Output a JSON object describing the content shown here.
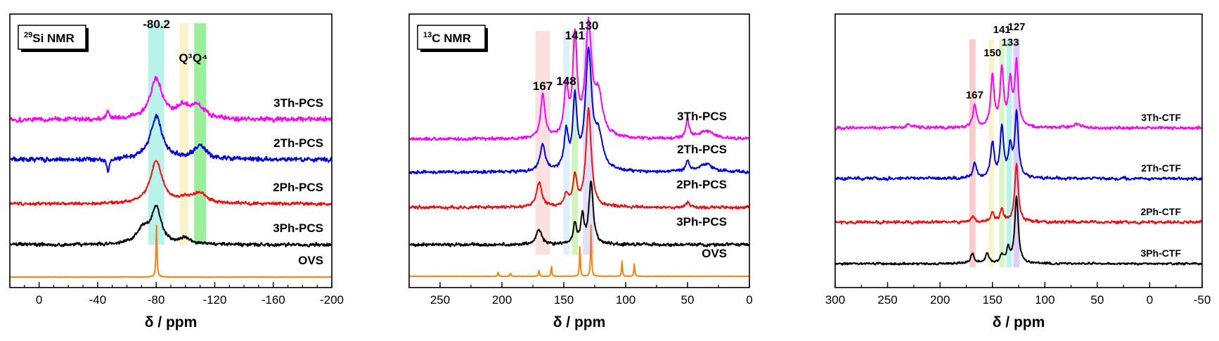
{
  "chart_data": [
    {
      "type": "line",
      "title": "29Si NMR",
      "title_parts": {
        "sup": "29",
        "main": "Si NMR"
      },
      "xlabel": "δ / ppm",
      "xlim": [
        20,
        -200
      ],
      "reversed_x": true,
      "ticks": [
        0,
        -40,
        -80,
        -120,
        -160,
        -200
      ],
      "tick_labels": [
        "0",
        "-40",
        "-80",
        "-120",
        "-160",
        "-200"
      ],
      "peak_labels": [
        {
          "text": "-80.2",
          "x": -80.2
        },
        {
          "text": "Q³",
          "x": -100
        },
        {
          "text": "Q⁴",
          "x": -110
        }
      ],
      "bands": [
        {
          "center": -80,
          "width": 11,
          "color": "#7fe7d6"
        },
        {
          "center": -99,
          "width": 6,
          "color": "#f2e9a0"
        },
        {
          "center": -110,
          "width": 8,
          "color": "#4be04b"
        }
      ],
      "series": [
        {
          "name": "3Th-PCS",
          "color": "#ff00ff",
          "peaks": [
            {
              "x": -80,
              "h": 0.95,
              "w": 5
            },
            {
              "x": -98,
              "h": 0.25,
              "w": 5
            },
            {
              "x": -108,
              "h": 0.3,
              "w": 6
            },
            {
              "x": -47,
              "h": 0.2,
              "w": 1
            }
          ]
        },
        {
          "name": "2Th-PCS",
          "color": "#0000dd",
          "peaks": [
            {
              "x": -80,
              "h": 1.0,
              "w": 5
            },
            {
              "x": -110,
              "h": 0.32,
              "w": 5
            },
            {
              "x": -47,
              "h": -0.3,
              "w": 1
            }
          ]
        },
        {
          "name": "2Ph-PCS",
          "color": "#ee1111",
          "peaks": [
            {
              "x": -80,
              "h": 1.0,
              "w": 5
            },
            {
              "x": -100,
              "h": 0.1,
              "w": 5
            },
            {
              "x": -110,
              "h": 0.22,
              "w": 6
            }
          ]
        },
        {
          "name": "3Ph-PCS",
          "color": "#000000",
          "peaks": [
            {
              "x": -71,
              "h": 0.35,
              "w": 5
            },
            {
              "x": -80,
              "h": 0.85,
              "w": 4
            },
            {
              "x": -100,
              "h": 0.15,
              "w": 4
            }
          ]
        },
        {
          "name": "OVS",
          "color": "#ff7f0e",
          "peaks": [
            {
              "x": -80.2,
              "h": 1.0,
              "w": 0.4
            }
          ]
        }
      ]
    },
    {
      "type": "line",
      "title": "13C NMR",
      "title_parts": {
        "sup": "13",
        "main": "C NMR"
      },
      "xlabel": "δ / ppm",
      "xlim": [
        275,
        0
      ],
      "reversed_x": true,
      "ticks": [
        250,
        200,
        150,
        100,
        50,
        0
      ],
      "tick_labels": [
        "250",
        "200",
        "150",
        "100",
        "50",
        "0"
      ],
      "peak_labels": [
        {
          "text": "167",
          "x": 167
        },
        {
          "text": "148",
          "x": 148
        },
        {
          "text": "141",
          "x": 141
        },
        {
          "text": "130",
          "x": 130
        }
      ],
      "bands": [
        {
          "center": 167,
          "width": 12,
          "color": "#f7c7c7"
        },
        {
          "center": 148,
          "width": 5,
          "color": "#bfe3f7"
        },
        {
          "center": 141,
          "width": 5,
          "color": "#a8ee80"
        },
        {
          "center": 130,
          "width": 9,
          "color": "#c7c7f2"
        }
      ],
      "series": [
        {
          "name": "3Th-PCS",
          "color": "#ff00ff",
          "peaks": [
            {
              "x": 167,
              "h": 0.45,
              "w": 2
            },
            {
              "x": 148,
              "h": 0.5,
              "w": 2
            },
            {
              "x": 141,
              "h": 1.0,
              "w": 2
            },
            {
              "x": 130,
              "h": 1.1,
              "w": 3
            },
            {
              "x": 122,
              "h": 0.4,
              "w": 4
            },
            {
              "x": 50,
              "h": 0.2,
              "w": 1.5
            },
            {
              "x": 35,
              "h": 0.08,
              "w": 8
            }
          ]
        },
        {
          "name": "2Th-PCS",
          "color": "#0000dd",
          "peaks": [
            {
              "x": 167,
              "h": 0.25,
              "w": 2.5
            },
            {
              "x": 148,
              "h": 0.35,
              "w": 2
            },
            {
              "x": 141,
              "h": 0.65,
              "w": 2
            },
            {
              "x": 130,
              "h": 1.1,
              "w": 3
            },
            {
              "x": 122,
              "h": 0.3,
              "w": 4
            },
            {
              "x": 50,
              "h": 0.1,
              "w": 2
            },
            {
              "x": 35,
              "h": 0.08,
              "w": 6
            }
          ]
        },
        {
          "name": "2Ph-PCS",
          "color": "#ee1111",
          "peaks": [
            {
              "x": 170,
              "h": 0.25,
              "w": 2.5
            },
            {
              "x": 148,
              "h": 0.12,
              "w": 2
            },
            {
              "x": 141,
              "h": 0.3,
              "w": 2
            },
            {
              "x": 130,
              "h": 1.0,
              "w": 2.5
            },
            {
              "x": 50,
              "h": 0.05,
              "w": 2
            }
          ]
        },
        {
          "name": "3Ph-PCS",
          "color": "#000000",
          "peaks": [
            {
              "x": 170,
              "h": 0.22,
              "w": 2.5
            },
            {
              "x": 141,
              "h": 0.3,
              "w": 1.5
            },
            {
              "x": 135,
              "h": 0.4,
              "w": 1.5
            },
            {
              "x": 128,
              "h": 0.9,
              "w": 2
            }
          ]
        },
        {
          "name": "OVS",
          "color": "#ff7f0e",
          "peaks": [
            {
              "x": 203,
              "h": 0.08,
              "w": 0.4
            },
            {
              "x": 193,
              "h": 0.06,
              "w": 0.4
            },
            {
              "x": 170,
              "h": 0.12,
              "w": 0.4
            },
            {
              "x": 160,
              "h": 0.2,
              "w": 0.4
            },
            {
              "x": 137,
              "h": 0.6,
              "w": 0.4
            },
            {
              "x": 128,
              "h": 1.0,
              "w": 0.4
            },
            {
              "x": 103,
              "h": 0.3,
              "w": 0.4
            },
            {
              "x": 93,
              "h": 0.25,
              "w": 0.4
            }
          ]
        }
      ]
    },
    {
      "type": "line",
      "title": "",
      "xlabel": "δ / ppm",
      "xlim": [
        300,
        -50
      ],
      "reversed_x": true,
      "ticks": [
        300,
        250,
        200,
        150,
        100,
        50,
        0,
        -50
      ],
      "tick_labels": [
        "300",
        "250",
        "200",
        "150",
        "100",
        "50",
        "0",
        "-50"
      ],
      "peak_labels": [
        {
          "text": "167",
          "x": 167
        },
        {
          "text": "150",
          "x": 150
        },
        {
          "text": "141",
          "x": 141
        },
        {
          "text": "133",
          "x": 133
        },
        {
          "text": "127",
          "x": 127
        }
      ],
      "bands": [
        {
          "center": 169,
          "width": 6,
          "color": "#f5a3a3"
        },
        {
          "center": 151,
          "width": 5,
          "color": "#f2e9a0"
        },
        {
          "center": 141,
          "width": 5,
          "color": "#b6ee8c"
        },
        {
          "center": 134,
          "width": 5,
          "color": "#7fe7d6"
        },
        {
          "center": 127,
          "width": 6,
          "color": "#b9a8f0"
        }
      ],
      "series": [
        {
          "name": "3Th-CTF",
          "color": "#ff00ff",
          "peaks": [
            {
              "x": 167,
              "h": 0.35,
              "w": 2
            },
            {
              "x": 150,
              "h": 0.8,
              "w": 2
            },
            {
              "x": 141,
              "h": 0.9,
              "w": 2
            },
            {
              "x": 133,
              "h": 0.7,
              "w": 2
            },
            {
              "x": 127,
              "h": 1.0,
              "w": 2
            },
            {
              "x": 230,
              "h": 0.05,
              "w": 4
            },
            {
              "x": 70,
              "h": 0.06,
              "w": 5
            }
          ]
        },
        {
          "name": "2Th-CTF",
          "color": "#0000dd",
          "peaks": [
            {
              "x": 167,
              "h": 0.3,
              "w": 2
            },
            {
              "x": 150,
              "h": 0.7,
              "w": 2
            },
            {
              "x": 141,
              "h": 1.0,
              "w": 2
            },
            {
              "x": 133,
              "h": 0.6,
              "w": 2
            },
            {
              "x": 127,
              "h": 1.3,
              "w": 2
            }
          ]
        },
        {
          "name": "2Ph-CTF",
          "color": "#ee1111",
          "peaks": [
            {
              "x": 169,
              "h": 0.15,
              "w": 2
            },
            {
              "x": 150,
              "h": 0.25,
              "w": 2
            },
            {
              "x": 141,
              "h": 0.3,
              "w": 2
            },
            {
              "x": 127,
              "h": 1.5,
              "w": 2
            }
          ]
        },
        {
          "name": "3Ph-CTF",
          "color": "#000000",
          "peaks": [
            {
              "x": 169,
              "h": 0.15,
              "w": 2
            },
            {
              "x": 155,
              "h": 0.15,
              "w": 2
            },
            {
              "x": 141,
              "h": 0.12,
              "w": 2
            },
            {
              "x": 135,
              "h": 0.2,
              "w": 2
            },
            {
              "x": 127,
              "h": 1.0,
              "w": 2
            }
          ]
        }
      ]
    }
  ]
}
